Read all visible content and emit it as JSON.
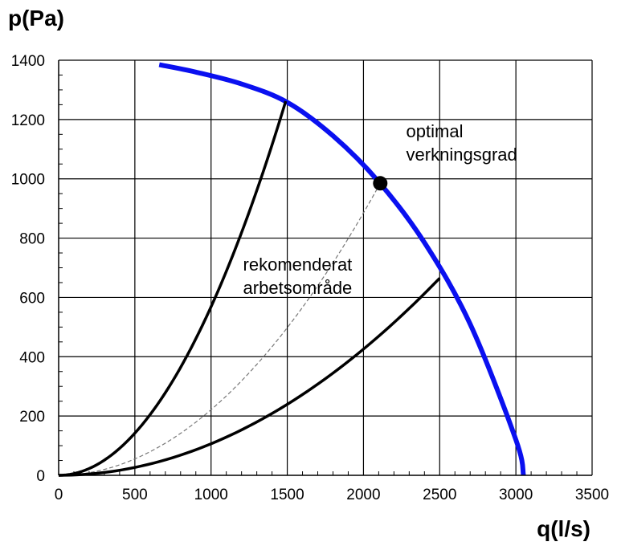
{
  "chart_data": {
    "type": "line",
    "ylabel": "p(Pa)",
    "xlabel": "q(l/s)",
    "xlim": [
      0,
      3500
    ],
    "ylim": [
      0,
      1400
    ],
    "x_ticks": [
      0,
      500,
      1000,
      1500,
      2000,
      2500,
      3000,
      3500
    ],
    "y_ticks": [
      0,
      200,
      400,
      600,
      800,
      1000,
      1200,
      1400
    ],
    "grid": true,
    "series": [
      {
        "kind": "fan-curve",
        "color": "#0a10f0",
        "x": [
          660,
          900,
          1200,
          1500,
          1800,
          2100,
          2400,
          2700,
          3000,
          3050
        ],
        "y": [
          1385,
          1360,
          1320,
          1258,
          1145,
          990,
          785,
          510,
          120,
          0
        ]
      },
      {
        "kind": "system-curve-upper",
        "color": "#000000",
        "x_end": 1490,
        "y_end": 1262
      },
      {
        "kind": "system-curve-optimal",
        "color": "#777777",
        "dashed": true,
        "x_end": 2110,
        "y_end": 985
      },
      {
        "kind": "system-curve-lower",
        "color": "#000000",
        "x_end": 2500,
        "y_end": 665
      }
    ],
    "point": {
      "x": 2110,
      "y": 985,
      "color": "#000000"
    },
    "annotations": [
      {
        "lines": [
          "optimal",
          "verkningsgrad"
        ],
        "x": 2280,
        "y": 1140
      },
      {
        "lines": [
          "rekomenderat",
          "arbetsområde"
        ],
        "x": 1210,
        "y": 690
      }
    ]
  }
}
